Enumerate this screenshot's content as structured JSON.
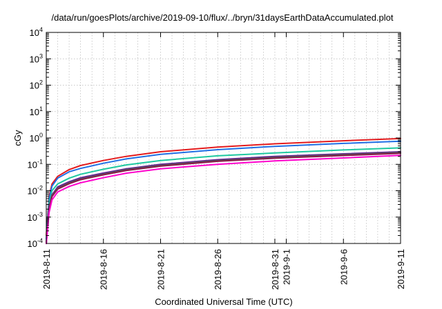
{
  "chart_data": {
    "type": "line",
    "title": "/data/run/goesPlots/archive/2019-09-10/flux/../bryn/31daysEarthDataAccumulated.plot",
    "xlabel": "Coordinated Universal Time (UTC)",
    "ylabel": "cGy",
    "yscale": "log",
    "ylim": [
      0.0001,
      10000
    ],
    "xlim": [
      "2019-08-11",
      "2019-09-11"
    ],
    "grid": true,
    "legend": "none",
    "x_ticks": [
      "2019-8-11",
      "2019-8-16",
      "2019-8-21",
      "2019-8-26",
      "2019-8-31",
      "2019-9-1",
      "2019-9-6",
      "2019-9-11"
    ],
    "x_tick_days": [
      0,
      5,
      10,
      15,
      20,
      21,
      26,
      31
    ],
    "y_ticks": [
      {
        "base": "10",
        "exp": "-4",
        "value": 0.0001
      },
      {
        "base": "10",
        "exp": "-3",
        "value": 0.001
      },
      {
        "base": "10",
        "exp": "-2",
        "value": 0.01
      },
      {
        "base": "10",
        "exp": "-1",
        "value": 0.1
      },
      {
        "base": "10",
        "exp": "0",
        "value": 1
      },
      {
        "base": "10",
        "exp": "1",
        "value": 10
      },
      {
        "base": "10",
        "exp": "2",
        "value": 100
      },
      {
        "base": "10",
        "exp": "3",
        "value": 1000
      },
      {
        "base": "10",
        "exp": "4",
        "value": 10000
      }
    ],
    "x": [
      "2019-08-11",
      "2019-08-11T06:00",
      "2019-08-11T12:00",
      "2019-08-12",
      "2019-08-13",
      "2019-08-14",
      "2019-08-16",
      "2019-08-18",
      "2019-08-21",
      "2019-08-26",
      "2019-08-31",
      "2019-09-06",
      "2019-09-11"
    ],
    "series": [
      {
        "color": "#e41a1c",
        "values": [
          0.0002,
          0.006,
          0.018,
          0.035,
          0.063,
          0.09,
          0.14,
          0.2,
          0.3,
          0.45,
          0.6,
          0.78,
          0.95
        ]
      },
      {
        "color": "#1f6fe5",
        "values": [
          0.00015,
          0.005,
          0.015,
          0.03,
          0.052,
          0.07,
          0.11,
          0.16,
          0.24,
          0.36,
          0.48,
          0.62,
          0.75
        ]
      },
      {
        "color": "#1ec8a0",
        "values": [
          0.0001,
          0.0035,
          0.01,
          0.018,
          0.03,
          0.042,
          0.065,
          0.095,
          0.14,
          0.21,
          0.27,
          0.35,
          0.42
        ]
      },
      {
        "color": "#6a1b9a",
        "values": [
          0.0001,
          0.0025,
          0.007,
          0.014,
          0.022,
          0.031,
          0.047,
          0.068,
          0.1,
          0.15,
          0.2,
          0.25,
          0.3
        ]
      },
      {
        "color": "#555555",
        "values": [
          0.0001,
          0.0022,
          0.0065,
          0.0125,
          0.02,
          0.028,
          0.043,
          0.063,
          0.092,
          0.14,
          0.185,
          0.235,
          0.28
        ]
      },
      {
        "color": "#8b1a4a",
        "values": [
          0.0001,
          0.002,
          0.006,
          0.0115,
          0.0185,
          0.026,
          0.04,
          0.058,
          0.085,
          0.13,
          0.17,
          0.215,
          0.26
        ]
      },
      {
        "color": "#ff00cc",
        "values": [
          0.0001,
          0.0015,
          0.0045,
          0.009,
          0.0145,
          0.02,
          0.031,
          0.046,
          0.068,
          0.1,
          0.135,
          0.175,
          0.22
        ]
      }
    ]
  }
}
